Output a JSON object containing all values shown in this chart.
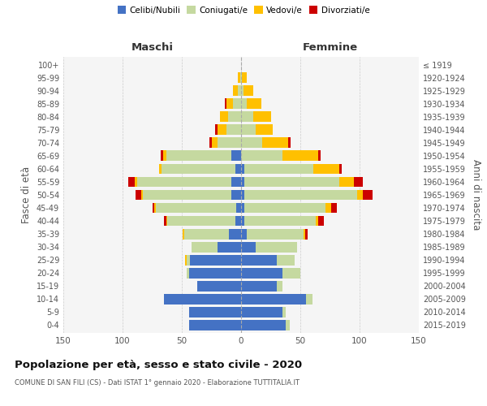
{
  "age_groups": [
    "0-4",
    "5-9",
    "10-14",
    "15-19",
    "20-24",
    "25-29",
    "30-34",
    "35-39",
    "40-44",
    "45-49",
    "50-54",
    "55-59",
    "60-64",
    "65-69",
    "70-74",
    "75-79",
    "80-84",
    "85-89",
    "90-94",
    "95-99",
    "100+"
  ],
  "birth_years": [
    "2015-2019",
    "2010-2014",
    "2005-2009",
    "2000-2004",
    "1995-1999",
    "1990-1994",
    "1985-1989",
    "1980-1984",
    "1975-1979",
    "1970-1974",
    "1965-1969",
    "1960-1964",
    "1955-1959",
    "1950-1954",
    "1945-1949",
    "1940-1944",
    "1935-1939",
    "1930-1934",
    "1925-1929",
    "1920-1924",
    "≤ 1919"
  ],
  "male": {
    "celibe": [
      44,
      44,
      65,
      37,
      44,
      43,
      20,
      10,
      5,
      4,
      8,
      8,
      5,
      8,
      0,
      0,
      0,
      0,
      0,
      0,
      0
    ],
    "coniugato": [
      0,
      0,
      0,
      0,
      2,
      3,
      22,
      38,
      57,
      68,
      75,
      80,
      62,
      55,
      20,
      12,
      11,
      7,
      3,
      1,
      0
    ],
    "vedovo": [
      0,
      0,
      0,
      0,
      0,
      1,
      0,
      1,
      1,
      1,
      1,
      2,
      2,
      3,
      5,
      8,
      7,
      5,
      4,
      2,
      0
    ],
    "divorziato": [
      0,
      0,
      0,
      0,
      0,
      0,
      0,
      0,
      2,
      2,
      5,
      5,
      0,
      2,
      2,
      2,
      0,
      2,
      0,
      0,
      0
    ]
  },
  "female": {
    "nubile": [
      38,
      35,
      55,
      30,
      35,
      30,
      12,
      5,
      3,
      3,
      3,
      3,
      3,
      0,
      0,
      0,
      0,
      0,
      0,
      0,
      0
    ],
    "coniugata": [
      3,
      3,
      5,
      5,
      15,
      15,
      35,
      48,
      60,
      68,
      95,
      80,
      58,
      35,
      18,
      12,
      10,
      5,
      2,
      1,
      0
    ],
    "vedova": [
      0,
      0,
      0,
      0,
      0,
      0,
      0,
      1,
      2,
      5,
      5,
      12,
      22,
      30,
      22,
      15,
      15,
      12,
      8,
      4,
      0
    ],
    "divorziata": [
      0,
      0,
      0,
      0,
      0,
      0,
      0,
      2,
      5,
      5,
      8,
      8,
      2,
      2,
      2,
      0,
      0,
      0,
      0,
      0,
      0
    ]
  },
  "colors": {
    "celibe": "#4472c4",
    "coniugato": "#c5d9a0",
    "vedovo": "#ffc000",
    "divorziato": "#cc0000"
  },
  "legend_labels": [
    "Celibi/Nubili",
    "Coniugati/e",
    "Vedovi/e",
    "Divorziati/e"
  ],
  "title": "Popolazione per età, sesso e stato civile - 2020",
  "subtitle": "COMUNE DI SAN FILI (CS) - Dati ISTAT 1° gennaio 2020 - Elaborazione TUTTITALIA.IT",
  "label_maschi": "Maschi",
  "label_femmine": "Femmine",
  "ylabel_left": "Fasce di età",
  "ylabel_right": "Anni di nascita",
  "xlim": 150,
  "bg_color": "#f5f5f5",
  "grid_color": "#cccccc"
}
